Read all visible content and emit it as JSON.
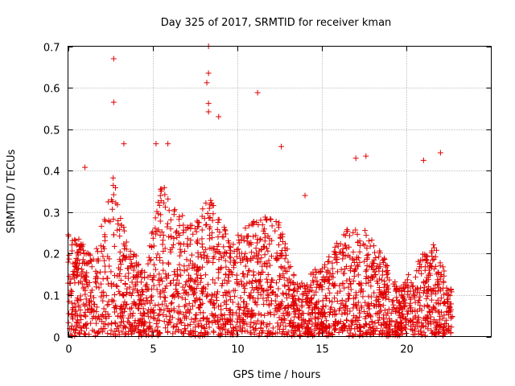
{
  "chart_data": {
    "type": "scatter",
    "title": "Day 325 of 2017, SRMTID for receiver kman",
    "xlabel": "GPS time / hours",
    "ylabel": "SRMTID / TECUs",
    "xlim": [
      0,
      25
    ],
    "ylim": [
      0,
      0.7
    ],
    "x_ticks": [
      0,
      5,
      10,
      15,
      20
    ],
    "y_ticks": [
      0,
      0.1,
      0.2,
      0.3,
      0.4,
      0.5,
      0.6,
      0.7
    ],
    "x_tick_labels": [
      "0",
      "5",
      "10",
      "15",
      "20"
    ],
    "y_tick_labels": [
      "0",
      "0.1",
      "0.2",
      "0.3",
      "0.4",
      "0.5",
      "0.6",
      "0.7"
    ],
    "grid": true,
    "marker": "+",
    "color": "#e00000",
    "x_data_range": [
      0,
      22.7
    ],
    "notable_points": [
      {
        "x": 2.7,
        "y": 0.67
      },
      {
        "x": 2.7,
        "y": 0.565
      },
      {
        "x": 8.3,
        "y": 0.7
      },
      {
        "x": 8.3,
        "y": 0.635
      },
      {
        "x": 8.2,
        "y": 0.612
      },
      {
        "x": 8.3,
        "y": 0.562
      },
      {
        "x": 8.3,
        "y": 0.542
      },
      {
        "x": 8.9,
        "y": 0.53
      },
      {
        "x": 11.2,
        "y": 0.588
      },
      {
        "x": 5.2,
        "y": 0.465
      },
      {
        "x": 5.9,
        "y": 0.465
      },
      {
        "x": 3.3,
        "y": 0.465
      },
      {
        "x": 12.6,
        "y": 0.458
      },
      {
        "x": 22.0,
        "y": 0.443
      },
      {
        "x": 17.6,
        "y": 0.435
      },
      {
        "x": 17.0,
        "y": 0.43
      },
      {
        "x": 21.0,
        "y": 0.425
      },
      {
        "x": 1.0,
        "y": 0.408
      },
      {
        "x": 14.0,
        "y": 0.34
      }
    ],
    "activity_profile": [
      {
        "hour": 0.5,
        "level": 0.16
      },
      {
        "hour": 1.5,
        "level": 0.12
      },
      {
        "hour": 2.7,
        "level": 0.25
      },
      {
        "hour": 3.5,
        "level": 0.15
      },
      {
        "hour": 4.5,
        "level": 0.1
      },
      {
        "hour": 5.5,
        "level": 0.24
      },
      {
        "hour": 6.5,
        "level": 0.19
      },
      {
        "hour": 7.5,
        "level": 0.17
      },
      {
        "hour": 8.4,
        "level": 0.23
      },
      {
        "hour": 9.5,
        "level": 0.15
      },
      {
        "hour": 10.5,
        "level": 0.17
      },
      {
        "hour": 11.5,
        "level": 0.19
      },
      {
        "hour": 12.5,
        "level": 0.18
      },
      {
        "hour": 13.5,
        "level": 0.08
      },
      {
        "hour": 14.5,
        "level": 0.1
      },
      {
        "hour": 15.5,
        "level": 0.13
      },
      {
        "hour": 16.5,
        "level": 0.17
      },
      {
        "hour": 17.5,
        "level": 0.17
      },
      {
        "hour": 18.5,
        "level": 0.13
      },
      {
        "hour": 19.5,
        "level": 0.07
      },
      {
        "hour": 20.5,
        "level": 0.11
      },
      {
        "hour": 21.5,
        "level": 0.15
      },
      {
        "hour": 22.5,
        "level": 0.08
      }
    ]
  }
}
